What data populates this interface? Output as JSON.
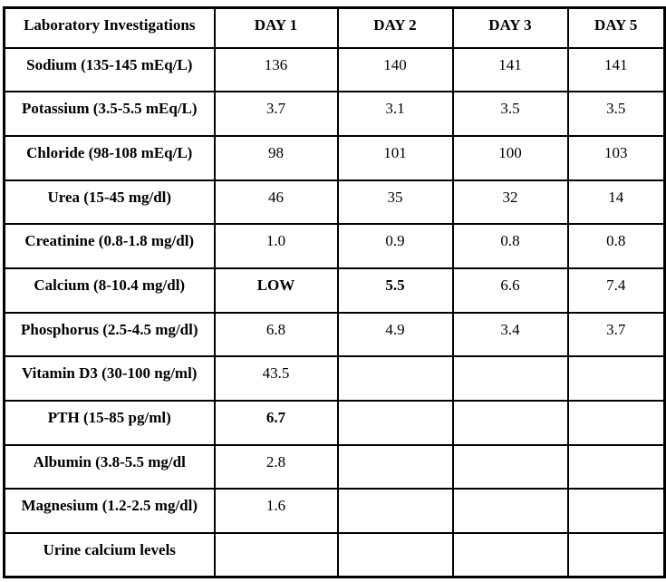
{
  "colors": {
    "background": "#FFFFFF",
    "border": "#000000",
    "text": "#000000",
    "alert_red": "#FF0000"
  },
  "table": {
    "columns": [
      "Laboratory Investigations",
      "DAY 1",
      "DAY 2",
      "DAY 3",
      "DAY 5"
    ],
    "rows": [
      {
        "label": "Sodium (135-145 mEq/L)",
        "values": [
          {
            "text": "136",
            "style": "normal"
          },
          {
            "text": "140",
            "style": "normal"
          },
          {
            "text": "141",
            "style": "normal"
          },
          {
            "text": "141",
            "style": "normal"
          }
        ]
      },
      {
        "label": "Potassium (3.5-5.5 mEq/L)",
        "values": [
          {
            "text": "3.7",
            "style": "normal"
          },
          {
            "text": "3.1",
            "style": "normal"
          },
          {
            "text": "3.5",
            "style": "normal"
          },
          {
            "text": "3.5",
            "style": "normal"
          }
        ]
      },
      {
        "label": "Chloride (98-108 mEq/L)",
        "values": [
          {
            "text": "98",
            "style": "normal"
          },
          {
            "text": "101",
            "style": "normal"
          },
          {
            "text": "100",
            "style": "normal"
          },
          {
            "text": "103",
            "style": "normal"
          }
        ]
      },
      {
        "label": "Urea (15-45 mg/dl)",
        "values": [
          {
            "text": "46",
            "style": "normal"
          },
          {
            "text": "35",
            "style": "normal"
          },
          {
            "text": "32",
            "style": "normal"
          },
          {
            "text": "14",
            "style": "normal"
          }
        ]
      },
      {
        "label": "Creatinine (0.8-1.8 mg/dl)",
        "values": [
          {
            "text": "1.0",
            "style": "normal"
          },
          {
            "text": "0.9",
            "style": "normal"
          },
          {
            "text": "0.8",
            "style": "normal"
          },
          {
            "text": "0.8",
            "style": "normal"
          }
        ]
      },
      {
        "label": "Calcium (8-10.4 mg/dl)",
        "values": [
          {
            "text": "LOW",
            "style": "red-bold"
          },
          {
            "text": "5.5",
            "style": "red-bold"
          },
          {
            "text": "6.6",
            "style": "red"
          },
          {
            "text": "7.4",
            "style": "normal"
          }
        ]
      },
      {
        "label": "Phosphorus (2.5-4.5 mg/dl)",
        "values": [
          {
            "text": "6.8",
            "style": "red"
          },
          {
            "text": "4.9",
            "style": "red"
          },
          {
            "text": "3.4",
            "style": "normal"
          },
          {
            "text": "3.7",
            "style": "normal"
          }
        ]
      },
      {
        "label": "Vitamin D3 (30-100 ng/ml)",
        "values": [
          {
            "text": "43.5",
            "style": "normal"
          },
          {
            "text": "",
            "style": "normal"
          },
          {
            "text": "",
            "style": "normal"
          },
          {
            "text": "",
            "style": "normal"
          }
        ]
      },
      {
        "label": "PTH (15-85 pg/ml)",
        "values": [
          {
            "text": "6.7",
            "style": "red-bold"
          },
          {
            "text": "",
            "style": "normal"
          },
          {
            "text": "",
            "style": "normal"
          },
          {
            "text": "",
            "style": "normal"
          }
        ]
      },
      {
        "label": "Albumin (3.8-5.5 mg/dl",
        "values": [
          {
            "text": "2.8",
            "style": "normal"
          },
          {
            "text": "",
            "style": "normal"
          },
          {
            "text": "",
            "style": "normal"
          },
          {
            "text": "",
            "style": "normal"
          }
        ]
      },
      {
        "label": "Magnesium (1.2-2.5 mg/dl)",
        "values": [
          {
            "text": "1.6",
            "style": "normal"
          },
          {
            "text": "",
            "style": "normal"
          },
          {
            "text": "",
            "style": "normal"
          },
          {
            "text": "",
            "style": "normal"
          }
        ]
      },
      {
        "label": "Urine calcium levels",
        "values": [
          {
            "text": "",
            "style": "normal"
          },
          {
            "text": "",
            "style": "normal"
          },
          {
            "text": "",
            "style": "normal"
          },
          {
            "text": "",
            "style": "normal"
          }
        ]
      }
    ]
  }
}
